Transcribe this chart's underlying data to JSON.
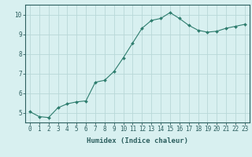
{
  "x": [
    0,
    1,
    2,
    3,
    4,
    5,
    6,
    7,
    8,
    9,
    10,
    11,
    12,
    13,
    14,
    15,
    16,
    17,
    18,
    19,
    20,
    21,
    22,
    23
  ],
  "y": [
    5.05,
    4.8,
    4.75,
    5.25,
    5.45,
    5.55,
    5.6,
    6.55,
    6.65,
    7.1,
    7.8,
    8.55,
    9.3,
    9.7,
    9.8,
    10.1,
    9.8,
    9.45,
    9.2,
    9.1,
    9.15,
    9.3,
    9.4,
    9.5
  ],
  "line_color": "#2e7d6e",
  "marker": "D",
  "marker_size": 2.0,
  "bg_color": "#d8f0f0",
  "grid_color": "#b8d8d8",
  "axis_color": "#2e6060",
  "xlabel": "Humidex (Indice chaleur)",
  "ylim": [
    4.5,
    10.5
  ],
  "xlim": [
    -0.5,
    23.5
  ],
  "yticks": [
    5,
    6,
    7,
    8,
    9,
    10
  ],
  "xticks": [
    0,
    1,
    2,
    3,
    4,
    5,
    6,
    7,
    8,
    9,
    10,
    11,
    12,
    13,
    14,
    15,
    16,
    17,
    18,
    19,
    20,
    21,
    22,
    23
  ],
  "label_fontsize": 6.5,
  "tick_fontsize": 5.5
}
